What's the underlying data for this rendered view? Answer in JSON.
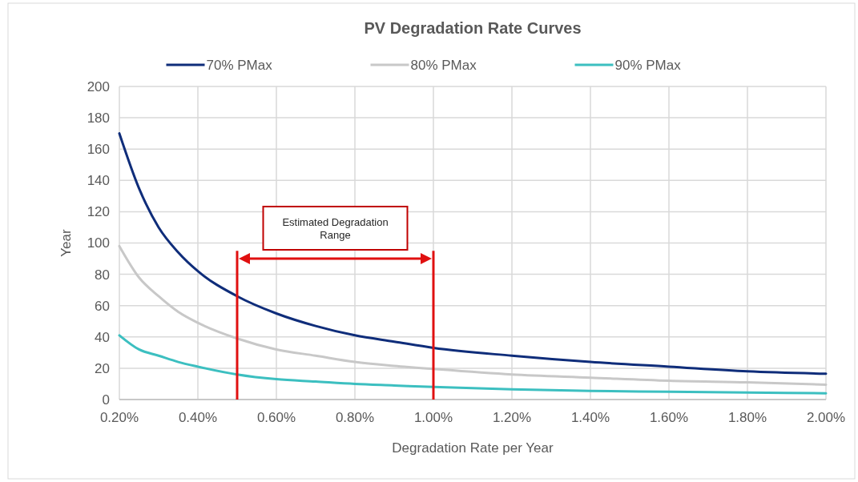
{
  "chart_data": {
    "type": "line",
    "title": "PV Degradation Rate Curves",
    "xlabel": "Degradation Rate per Year",
    "ylabel": "Year",
    "x": [
      0.2,
      0.25,
      0.3,
      0.35,
      0.4,
      0.5,
      0.6,
      0.7,
      0.8,
      0.9,
      1.0,
      1.2,
      1.4,
      1.6,
      1.8,
      2.0
    ],
    "series": [
      {
        "name": "70% PMax",
        "color": "#0f2d7a",
        "values": [
          170,
          135,
          110,
          94,
          82,
          66,
          55,
          47,
          41,
          37,
          33,
          28,
          24,
          21,
          18,
          16.5
        ]
      },
      {
        "name": "80% PMax",
        "color": "#c8c8c8",
        "values": [
          98,
          78,
          66,
          56,
          49,
          39,
          32,
          28,
          24,
          21.5,
          19.5,
          16,
          14,
          12,
          11,
          9.5
        ]
      },
      {
        "name": "90% PMax",
        "color": "#3cbfc0",
        "values": [
          41,
          32,
          28,
          24,
          21,
          16,
          13,
          11.5,
          10,
          9,
          8,
          6.5,
          5.5,
          5,
          4.5,
          4
        ]
      }
    ],
    "xlim": [
      0.2,
      2.0
    ],
    "xticks": [
      {
        "value": 0.2,
        "label": "0.20%"
      },
      {
        "value": 0.4,
        "label": "0.40%"
      },
      {
        "value": 0.6,
        "label": "0.60%"
      },
      {
        "value": 0.8,
        "label": "0.80%"
      },
      {
        "value": 1.0,
        "label": "1.00%"
      },
      {
        "value": 1.2,
        "label": "1.20%"
      },
      {
        "value": 1.4,
        "label": "1.40%"
      },
      {
        "value": 1.6,
        "label": "1.60%"
      },
      {
        "value": 1.8,
        "label": "1.80%"
      },
      {
        "value": 2.0,
        "label": "2.00%"
      }
    ],
    "ylim": [
      0,
      200
    ],
    "yticks": [
      0,
      20,
      40,
      60,
      80,
      100,
      120,
      140,
      160,
      180,
      200
    ],
    "grid": true,
    "legend": "top",
    "marker": "none",
    "line_style": "solid",
    "ref_lines": [
      {
        "axis": "x",
        "value": 0.5,
        "color": "#e01010"
      },
      {
        "axis": "x",
        "value": 1.0,
        "color": "#e01010"
      }
    ],
    "annotations": [
      "Estimated Degradation Range"
    ]
  }
}
